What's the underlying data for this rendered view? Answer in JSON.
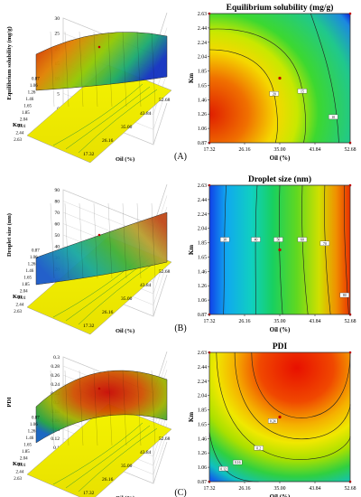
{
  "panels": [
    {
      "label": "(A)",
      "surface": {
        "zlabel": "Equilibrium solubility (mg/g)",
        "zticks": [
          "0",
          "5",
          "10",
          "15",
          "20",
          "25",
          "30"
        ],
        "ylabel": "Km",
        "yticks": [
          "0.87",
          "1.06",
          "1.26",
          "1.46",
          "1.65",
          "1.85",
          "2.04",
          "2.24",
          "2.44",
          "2.63"
        ],
        "xlabel": "Oil (%)",
        "xticks": [
          "17.32",
          "26.16",
          "35.00",
          "43.84",
          "52.68"
        ],
        "zlim": [
          0,
          30
        ]
      },
      "contour": {
        "title": "Equilibrium solubility (mg/g)",
        "xlabel": "Oil (%)",
        "ylabel": "Km",
        "xticks": [
          "17.32",
          "26.16",
          "35.00",
          "43.84",
          "52.68"
        ],
        "yticks": [
          "0.87",
          "1.06",
          "1.26",
          "1.46",
          "1.65",
          "1.85",
          "2.04",
          "2.24",
          "2.44",
          "2.63"
        ],
        "contour_levels": [
          "20",
          "15",
          "10"
        ]
      }
    },
    {
      "label": "(B)",
      "surface": {
        "zlabel": "Droplet size (nm)",
        "zticks": [
          "10",
          "20",
          "30",
          "40",
          "50",
          "60",
          "70",
          "80",
          "90"
        ],
        "ylabel": "Km",
        "yticks": [
          "0.87",
          "1.06",
          "1.26",
          "1.46",
          "1.65",
          "1.85",
          "2.04",
          "2.24",
          "2.44",
          "2.63"
        ],
        "xlabel": "Oil (%)",
        "xticks": [
          "17.32",
          "26.16",
          "35.00",
          "43.84",
          "52.68"
        ],
        "zlim": [
          10,
          90
        ]
      },
      "contour": {
        "title": "Droplet size (nm)",
        "xlabel": "Oil (%)",
        "ylabel": "Km",
        "xticks": [
          "17.32",
          "26.16",
          "35.00",
          "43.84",
          "52.68"
        ],
        "yticks": [
          "0.87",
          "1.06",
          "1.26",
          "1.46",
          "1.65",
          "1.85",
          "2.04",
          "2.24",
          "2.44",
          "2.63"
        ],
        "contour_levels": [
          "30",
          "40",
          "50",
          "60",
          "70",
          "80"
        ]
      }
    },
    {
      "label": "(C)",
      "surface": {
        "zlabel": "PDI",
        "zticks": [
          "0.1",
          "0.12",
          "0.14",
          "0.16",
          "0.18",
          "0.2",
          "0.22",
          "0.24",
          "0.26",
          "0.28",
          "0.3"
        ],
        "ylabel": "Km",
        "yticks": [
          "0.87",
          "1.06",
          "1.26",
          "1.46",
          "1.65",
          "1.85",
          "2.04",
          "2.24",
          "2.44",
          "2.63"
        ],
        "xlabel": "Oil (%)",
        "xticks": [
          "17.32",
          "26.16",
          "35.00",
          "43.84",
          "52.68"
        ],
        "zlim": [
          0.1,
          0.3
        ]
      },
      "contour": {
        "title": "PDI",
        "xlabel": "Oil (%)",
        "ylabel": "Km",
        "xticks": [
          "17.32",
          "26.16",
          "35.00",
          "43.84",
          "52.68"
        ],
        "yticks": [
          "0.87",
          "1.06",
          "1.26",
          "1.46",
          "1.65",
          "1.85",
          "2.04",
          "2.24",
          "2.44",
          "2.63"
        ],
        "contour_levels": [
          "0.24",
          "0.2",
          "0.16",
          "0.12"
        ]
      }
    }
  ],
  "chart_data": [
    {
      "type": "heatmap",
      "title": "Equilibrium solubility (mg/g)",
      "xlabel": "Oil (%)",
      "ylabel": "Km",
      "x": [
        17.32,
        26.16,
        35.0,
        43.84,
        52.68
      ],
      "y": [
        0.87,
        1.06,
        1.26,
        1.46,
        1.65,
        1.85,
        2.04,
        2.24,
        2.44,
        2.63
      ],
      "xlim": [
        17.32,
        52.68
      ],
      "ylim": [
        0.87,
        2.63
      ],
      "contour_levels": [
        20,
        15,
        10
      ],
      "design_center": {
        "x": 35.0,
        "y": 1.75
      },
      "surface_zlim": [
        0,
        30
      ]
    },
    {
      "type": "heatmap",
      "title": "Droplet size (nm)",
      "xlabel": "Oil (%)",
      "ylabel": "Km",
      "x": [
        17.32,
        26.16,
        35.0,
        43.84,
        52.68
      ],
      "y": [
        0.87,
        1.06,
        1.26,
        1.46,
        1.65,
        1.85,
        2.04,
        2.24,
        2.44,
        2.63
      ],
      "xlim": [
        17.32,
        52.68
      ],
      "ylim": [
        0.87,
        2.63
      ],
      "contour_levels": [
        30,
        40,
        50,
        60,
        70,
        80
      ],
      "design_center": {
        "x": 35.0,
        "y": 1.75
      },
      "surface_zlim": [
        10,
        90
      ]
    },
    {
      "type": "heatmap",
      "title": "PDI",
      "xlabel": "Oil (%)",
      "ylabel": "Km",
      "x": [
        17.32,
        26.16,
        35.0,
        43.84,
        52.68
      ],
      "y": [
        0.87,
        1.06,
        1.26,
        1.46,
        1.65,
        1.85,
        2.04,
        2.24,
        2.44,
        2.63
      ],
      "xlim": [
        17.32,
        52.68
      ],
      "ylim": [
        0.87,
        2.63
      ],
      "contour_levels": [
        0.24,
        0.2,
        0.16,
        0.12
      ],
      "design_center": {
        "x": 35.0,
        "y": 1.75
      },
      "surface_zlim": [
        0.1,
        0.3
      ]
    }
  ]
}
